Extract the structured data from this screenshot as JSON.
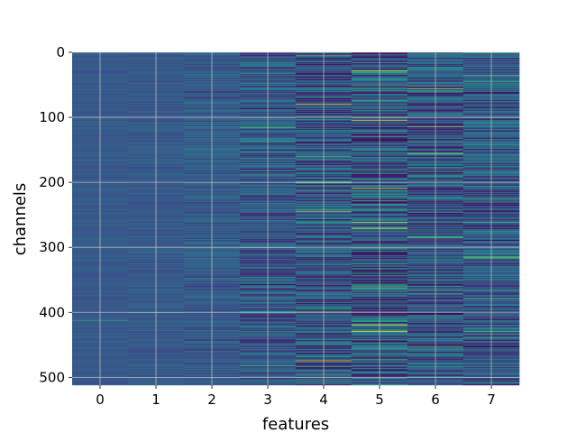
{
  "chart_data": {
    "type": "heatmap",
    "title": "",
    "xlabel": "features",
    "ylabel": "channels",
    "x_categories": [
      "0",
      "1",
      "2",
      "3",
      "4",
      "5",
      "6",
      "7"
    ],
    "y_ticks": [
      "0",
      "100",
      "200",
      "300",
      "400",
      "500"
    ],
    "y_tick_values": [
      0,
      100,
      200,
      300,
      400,
      500
    ],
    "ylim": [
      0,
      512
    ],
    "n_channels": 512,
    "n_features": 8,
    "grid": true,
    "colormap": "viridis",
    "colors": {
      "low": "#440154",
      "mid": "#3b528b",
      "mid2": "#21918c",
      "high": "#5ec962",
      "max": "#fde725",
      "grid": "#d9d9d9"
    },
    "column_contrast": [
      0.05,
      0.07,
      0.12,
      0.22,
      0.3,
      0.35,
      0.3,
      0.26
    ],
    "highlights": [
      {
        "feature": 0,
        "channel": 412,
        "value": 0.55
      },
      {
        "feature": 1,
        "channel": 400,
        "value": 0.5
      },
      {
        "feature": 2,
        "channel": 460,
        "value": 0.55
      },
      {
        "feature": 3,
        "channel": 115,
        "value": 0.7
      },
      {
        "feature": 3,
        "channel": 300,
        "value": 0.6
      },
      {
        "feature": 4,
        "channel": 79,
        "value": 1.0
      },
      {
        "feature": 4,
        "channel": 200,
        "value": 0.9
      },
      {
        "feature": 4,
        "channel": 244,
        "value": 0.9
      },
      {
        "feature": 4,
        "channel": 474,
        "value": 1.0
      },
      {
        "feature": 4,
        "channel": 398,
        "value": 0.75
      },
      {
        "feature": 5,
        "channel": 28,
        "value": 0.95
      },
      {
        "feature": 5,
        "channel": 104,
        "value": 1.0
      },
      {
        "feature": 5,
        "channel": 209,
        "value": 0.95
      },
      {
        "feature": 5,
        "channel": 261,
        "value": 0.9
      },
      {
        "feature": 5,
        "channel": 419,
        "value": 1.0
      },
      {
        "feature": 5,
        "channel": 429,
        "value": 0.95
      },
      {
        "feature": 6,
        "channel": 56,
        "value": 0.9
      },
      {
        "feature": 6,
        "channel": 114,
        "value": 0.8
      },
      {
        "feature": 6,
        "channel": 155,
        "value": 0.85
      },
      {
        "feature": 6,
        "channel": 283,
        "value": 0.6
      },
      {
        "feature": 6,
        "channel": 284,
        "value": 0.6
      },
      {
        "feature": 6,
        "channel": 285,
        "value": 0.6
      },
      {
        "feature": 6,
        "channel": 452,
        "value": 0.7
      },
      {
        "feature": 7,
        "channel": 1,
        "value": 0.65
      },
      {
        "feature": 7,
        "channel": 225,
        "value": 0.7
      },
      {
        "feature": 7,
        "channel": 314,
        "value": 0.65
      },
      {
        "feature": 7,
        "channel": 315,
        "value": 0.65
      },
      {
        "feature": 7,
        "channel": 316,
        "value": 0.65
      },
      {
        "feature": 7,
        "channel": 378,
        "value": 0.7
      }
    ]
  }
}
